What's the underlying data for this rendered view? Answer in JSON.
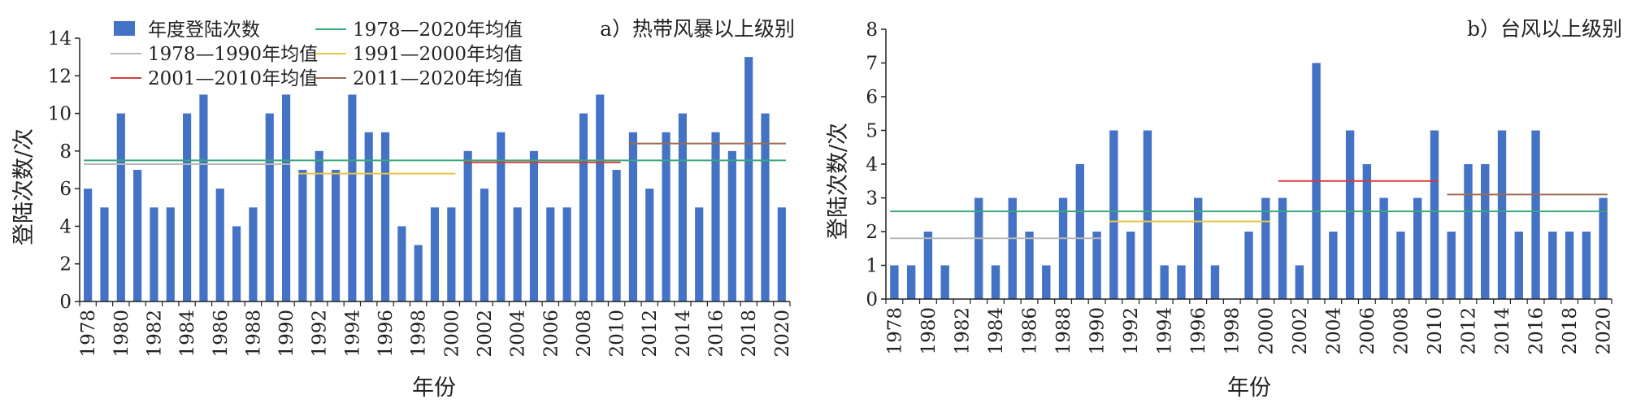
{
  "chart_data": [
    {
      "type": "bar",
      "title": "a）热带风暴以上级别",
      "xlabel": "年份",
      "ylabel": "登陆次数/次",
      "ylim": [
        0,
        14
      ],
      "yticks": [
        0,
        2,
        4,
        6,
        8,
        10,
        12,
        14
      ],
      "x": [
        1978,
        1979,
        1980,
        1981,
        1982,
        1983,
        1984,
        1985,
        1986,
        1987,
        1988,
        1989,
        1990,
        1991,
        1992,
        1993,
        1994,
        1995,
        1996,
        1997,
        1998,
        1999,
        2000,
        2001,
        2002,
        2003,
        2004,
        2005,
        2006,
        2007,
        2008,
        2009,
        2010,
        2011,
        2012,
        2013,
        2014,
        2015,
        2016,
        2017,
        2018,
        2019,
        2020
      ],
      "xtick_labels": [
        "1978",
        "1980",
        "1982",
        "1984",
        "1986",
        "1988",
        "1990",
        "1992",
        "1994",
        "1996",
        "1998",
        "2000",
        "2002",
        "2004",
        "2006",
        "2008",
        "2010",
        "2012",
        "2014",
        "2016",
        "2018",
        "2020"
      ],
      "series": [
        {
          "name": "年度登陆次数",
          "color": "#4472c4",
          "values": [
            6,
            5,
            10,
            7,
            5,
            5,
            10,
            11,
            6,
            4,
            5,
            10,
            11,
            7,
            8,
            7,
            11,
            9,
            9,
            4,
            3,
            5,
            5,
            8,
            6,
            9,
            5,
            8,
            5,
            5,
            10,
            11,
            7,
            9,
            6,
            9,
            10,
            5,
            9,
            8,
            13,
            10,
            5
          ]
        }
      ],
      "reference_lines": [
        {
          "name": "1978—2020年均值",
          "color": "#3aa87a",
          "value": 7.5,
          "x_range": [
            1978,
            2020
          ]
        },
        {
          "name": "1978—1990年均值",
          "color": "#b8b8b8",
          "value": 7.3,
          "x_range": [
            1978,
            1990
          ]
        },
        {
          "name": "1991—2000年均值",
          "color": "#e8c547",
          "value": 6.8,
          "x_range": [
            1991,
            2000
          ]
        },
        {
          "name": "2001—2010年均值",
          "color": "#d43b3b",
          "value": 7.4,
          "x_range": [
            2001,
            2010
          ]
        },
        {
          "name": "2011—2020年均值",
          "color": "#9e6b55",
          "value": 8.4,
          "x_range": [
            2011,
            2020
          ]
        }
      ],
      "legend": "top-left",
      "grid": false
    },
    {
      "type": "bar",
      "title": "b）台风以上级别",
      "xlabel": "年份",
      "ylabel": "登陆次数/次",
      "ylim": [
        0,
        8
      ],
      "yticks": [
        0,
        1,
        2,
        3,
        4,
        5,
        6,
        7,
        8
      ],
      "x": [
        1978,
        1979,
        1980,
        1981,
        1982,
        1983,
        1984,
        1985,
        1986,
        1987,
        1988,
        1989,
        1990,
        1991,
        1992,
        1993,
        1994,
        1995,
        1996,
        1997,
        1998,
        1999,
        2000,
        2001,
        2002,
        2003,
        2004,
        2005,
        2006,
        2007,
        2008,
        2009,
        2010,
        2011,
        2012,
        2013,
        2014,
        2015,
        2016,
        2017,
        2018,
        2019,
        2020
      ],
      "xtick_labels": [
        "1978",
        "1980",
        "1982",
        "1984",
        "1986",
        "1988",
        "1990",
        "1992",
        "1994",
        "1996",
        "1998",
        "2000",
        "2002",
        "2004",
        "2006",
        "2008",
        "2010",
        "2012",
        "2014",
        "2016",
        "2018",
        "2020"
      ],
      "series": [
        {
          "color": "#4472c4",
          "values": [
            1,
            1,
            2,
            1,
            0,
            3,
            1,
            3,
            2,
            1,
            3,
            4,
            2,
            5,
            2,
            5,
            1,
            1,
            3,
            1,
            0,
            2,
            3,
            3,
            1,
            7,
            2,
            5,
            4,
            3,
            2,
            3,
            5,
            2,
            4,
            4,
            5,
            2,
            5,
            2,
            2,
            2,
            3
          ]
        }
      ],
      "reference_lines": [
        {
          "color": "#3aa87a",
          "value": 2.6,
          "x_range": [
            1978,
            2020
          ]
        },
        {
          "color": "#b8b8b8",
          "value": 1.8,
          "x_range": [
            1978,
            1990
          ]
        },
        {
          "color": "#e8c547",
          "value": 2.3,
          "x_range": [
            1991,
            2000
          ]
        },
        {
          "color": "#d43b3b",
          "value": 3.5,
          "x_range": [
            2001,
            2010
          ]
        },
        {
          "color": "#9e6b55",
          "value": 3.1,
          "x_range": [
            2011,
            2020
          ]
        }
      ],
      "grid": false
    }
  ]
}
